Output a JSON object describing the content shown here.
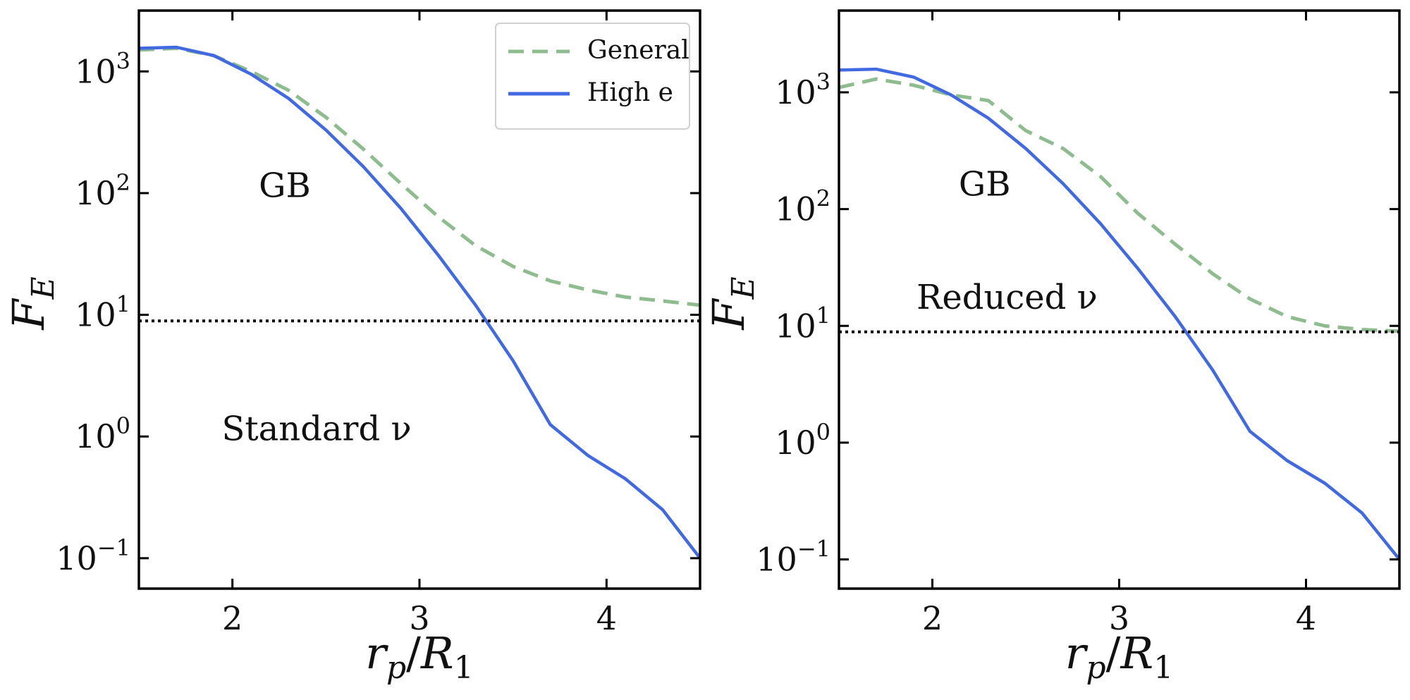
{
  "chart_data": [
    {
      "type": "line",
      "ylabel_main": "F",
      "ylabel_sub": "E",
      "xlabel_main_1": "r",
      "xlabel_sub_1": "p",
      "xlabel_mid": "/",
      "xlabel_main_2": "R",
      "xlabel_sub_2": "1",
      "xlim": [
        1.5,
        4.5
      ],
      "ylim_log10": [
        -1.25,
        3.5
      ],
      "y_scale": "log",
      "x_ticks": [
        {
          "label": "2",
          "v": 2
        },
        {
          "label": "3",
          "v": 3
        },
        {
          "label": "4",
          "v": 4
        }
      ],
      "y_ticks": [
        {
          "base": "10",
          "exp": "−1",
          "e": -1
        },
        {
          "base": "10",
          "exp": "0",
          "e": 0
        },
        {
          "base": "10",
          "exp": "1",
          "e": 1
        },
        {
          "base": "10",
          "exp": "2",
          "e": 2
        },
        {
          "base": "10",
          "exp": "3",
          "e": 3
        }
      ],
      "annotations": [
        {
          "text": "GB",
          "x": 2.28,
          "y_log10": 2.05
        },
        {
          "text": "Standard ν",
          "x": 2.45,
          "y_log10": 0.05
        }
      ],
      "legend": {
        "placement": "upper right",
        "entries": [
          {
            "label": "General",
            "series": "general"
          },
          {
            "label": "High e",
            "series": "high_e"
          }
        ]
      },
      "series": [
        {
          "name": "General",
          "key": "general",
          "style": "dashed",
          "color": "#8fbc8f",
          "x": [
            1.5,
            1.7,
            1.9,
            2.1,
            2.3,
            2.5,
            2.7,
            2.9,
            3.1,
            3.3,
            3.5,
            3.7,
            3.9,
            4.1,
            4.3,
            4.5
          ],
          "y": [
            1500,
            1550,
            1350,
            1000,
            700,
            420,
            230,
            120,
            64,
            37,
            25,
            19,
            16,
            14,
            13,
            12
          ]
        },
        {
          "name": "High e",
          "key": "high_e",
          "style": "solid",
          "color": "#4169e1",
          "x": [
            1.5,
            1.7,
            1.9,
            2.1,
            2.3,
            2.5,
            2.7,
            2.9,
            3.1,
            3.3,
            3.5,
            3.7,
            3.9,
            4.1,
            4.3,
            4.5
          ],
          "y": [
            1550,
            1580,
            1350,
            950,
            600,
            330,
            165,
            75,
            31,
            12,
            4.2,
            1.25,
            0.7,
            0.45,
            0.25,
            0.1
          ]
        },
        {
          "name": "threshold",
          "key": "threshold",
          "style": "dotted",
          "color": "#000000",
          "x": [
            1.5,
            4.5
          ],
          "y": [
            8.9,
            8.9
          ]
        }
      ]
    },
    {
      "type": "line",
      "ylabel_main": "F",
      "ylabel_sub": "E",
      "xlabel_main_1": "r",
      "xlabel_sub_1": "p",
      "xlabel_mid": "/",
      "xlabel_main_2": "R",
      "xlabel_sub_2": "1",
      "xlim": [
        1.5,
        4.5
      ],
      "ylim_log10": [
        -1.25,
        3.7
      ],
      "y_scale": "log",
      "x_ticks": [
        {
          "label": "2",
          "v": 2
        },
        {
          "label": "3",
          "v": 3
        },
        {
          "label": "4",
          "v": 4
        }
      ],
      "y_ticks": [
        {
          "base": "10",
          "exp": "−1",
          "e": -1
        },
        {
          "base": "10",
          "exp": "0",
          "e": 0
        },
        {
          "base": "10",
          "exp": "1",
          "e": 1
        },
        {
          "base": "10",
          "exp": "2",
          "e": 2
        },
        {
          "base": "10",
          "exp": "3",
          "e": 3
        }
      ],
      "annotations": [
        {
          "text": "GB",
          "x": 2.28,
          "y_log10": 2.2
        },
        {
          "text": "Reduced ν",
          "x": 2.4,
          "y_log10": 1.23
        }
      ],
      "series": [
        {
          "name": "General",
          "key": "general",
          "style": "dashed",
          "color": "#8fbc8f",
          "x": [
            1.5,
            1.7,
            1.9,
            2.1,
            2.3,
            2.5,
            2.7,
            2.9,
            3.1,
            3.3,
            3.5,
            3.7,
            3.9,
            4.1,
            4.3,
            4.5
          ],
          "y": [
            1100,
            1300,
            1150,
            950,
            850,
            470,
            330,
            190,
            92,
            50,
            28,
            17,
            12,
            10,
            9.3,
            9.0
          ]
        },
        {
          "name": "High e",
          "key": "high_e",
          "style": "solid",
          "color": "#4169e1",
          "x": [
            1.5,
            1.7,
            1.9,
            2.1,
            2.3,
            2.5,
            2.7,
            2.9,
            3.1,
            3.3,
            3.5,
            3.7,
            3.9,
            4.1,
            4.3,
            4.5
          ],
          "y": [
            1550,
            1580,
            1350,
            950,
            600,
            330,
            165,
            75,
            31,
            12,
            4.2,
            1.25,
            0.7,
            0.45,
            0.25,
            0.1
          ]
        },
        {
          "name": "threshold",
          "key": "threshold",
          "style": "dotted",
          "color": "#000000",
          "x": [
            1.5,
            4.5
          ],
          "y": [
            8.9,
            8.9
          ]
        }
      ]
    }
  ]
}
